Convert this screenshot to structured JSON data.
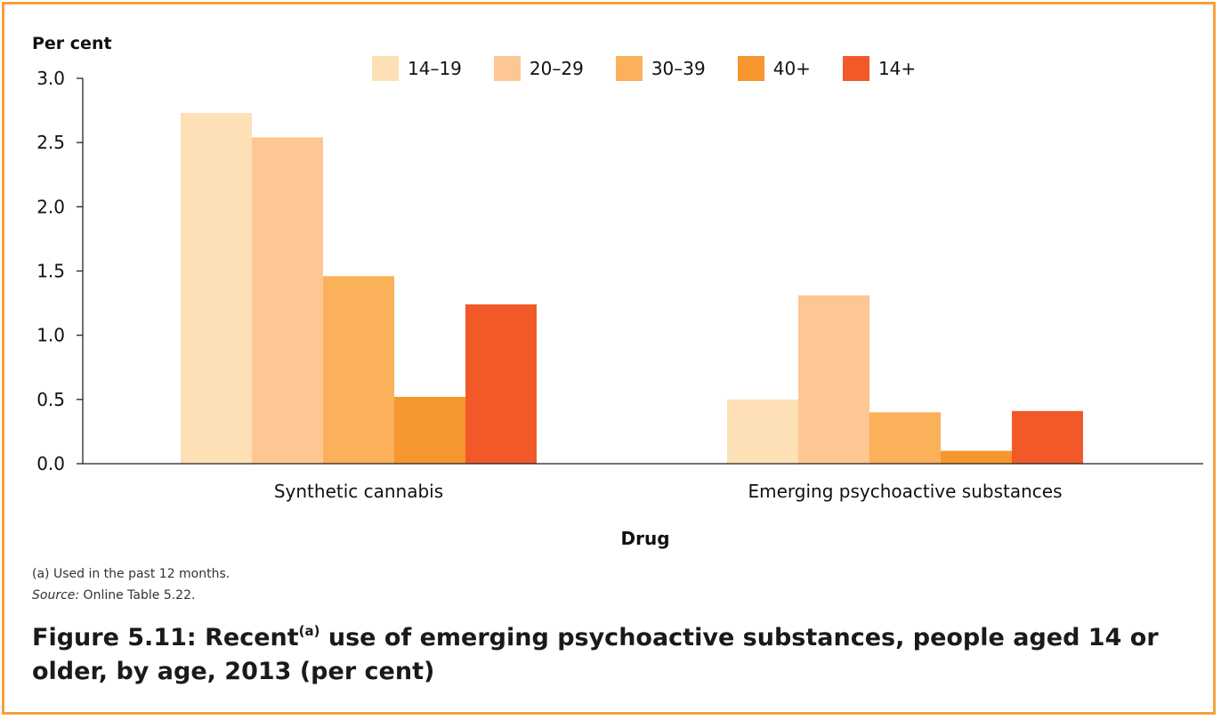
{
  "chart_data": {
    "type": "bar",
    "title": "Figure 5.11: Recent",
    "title_superscript": "(a)",
    "title_rest": " use of emerging psychoactive substances, people aged 14 or older, by age, 2013 (per cent)",
    "ylabel": "Per cent",
    "xlabel": "Drug",
    "ylim": [
      0,
      3.0
    ],
    "yticks": [
      "0.0",
      "0.5",
      "1.0",
      "1.5",
      "2.0",
      "2.5",
      "3.0"
    ],
    "categories": [
      "Synthetic cannabis",
      "Emerging psychoactive substances"
    ],
    "series": [
      {
        "name": "14–19",
        "color": "#fde0b6",
        "values": [
          2.73,
          0.5
        ]
      },
      {
        "name": "20–29",
        "color": "#fdc693",
        "values": [
          2.54,
          1.31
        ]
      },
      {
        "name": "30–39",
        "color": "#fbb05a",
        "values": [
          1.46,
          0.4
        ]
      },
      {
        "name": "40+",
        "color": "#f6962e",
        "values": [
          0.52,
          0.1
        ]
      },
      {
        "name": "14+",
        "color": "#f15a28",
        "values": [
          1.24,
          0.41
        ]
      }
    ],
    "legend_position": "top",
    "grid": false
  },
  "notes": {
    "footnote": "(a)  Used in the past 12 months.",
    "source_label": "Source:",
    "source_text": " Online Table 5.22."
  },
  "colors": {
    "frame": "#f5a13c"
  }
}
